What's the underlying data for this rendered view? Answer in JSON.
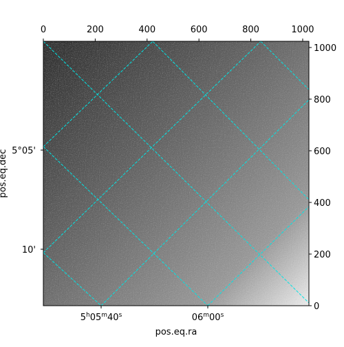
{
  "chart_data": {
    "type": "image",
    "xlabel": "pos.eq.ra",
    "ylabel": "pos.eq.dec",
    "xlim": [
      0,
      1024
    ],
    "ylim": [
      0,
      1024
    ],
    "xticks": [
      0,
      200,
      400,
      600,
      800,
      1000
    ],
    "yticks": [
      0,
      200,
      400,
      600,
      800,
      1000
    ],
    "world_xticks": [
      [
        "5",
        "h",
        "05",
        "m",
        "40",
        "s"
      ],
      [
        "06",
        "m",
        "00",
        "s"
      ]
    ],
    "world_yticks": [
      "5°05'",
      "10'"
    ],
    "grid_color": "#00e5e5"
  }
}
